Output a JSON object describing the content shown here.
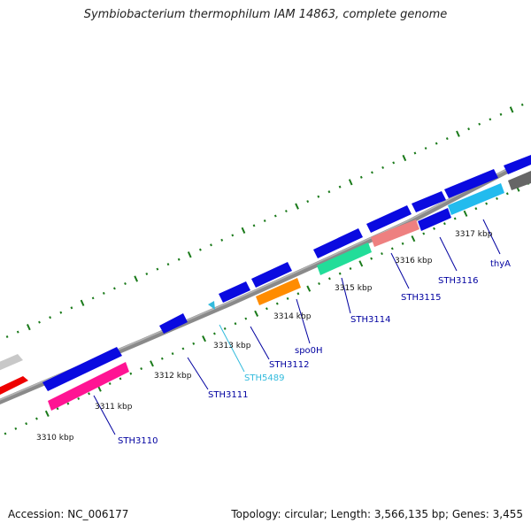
{
  "title": "Symbiobacterium thermophilum IAM 14863, complete genome",
  "footer": {
    "accession": "Accession: NC_006177",
    "summary": "Topology: circular; Length: 3,566,135 bp; Genes: 3,455"
  },
  "colors": {
    "forward_gene": "#0a0ae0",
    "reverse_gene_gray": "#666666",
    "backbone": "#888888",
    "tick": "#1a7a1a",
    "gene_label": "#0000a0",
    "gene_label_cyan": "#33bbdd",
    "spo0H": "#ff8c00",
    "STH3110": "#ff1493",
    "STH3114": "#22dd99",
    "STH3115": "#ee8080",
    "STH3116": "#22bbee",
    "STH5489": "#33bbdd",
    "red_gene": "#ee0000",
    "light_gray_gene": "#c8c8c8"
  },
  "kbp_labels": [
    "3310 kbp",
    "3311 kbp",
    "3312 kbp",
    "3313 kbp",
    "3314 kbp",
    "3315 kbp",
    "3316 kbp",
    "3317 kbp"
  ],
  "gene_labels": [
    {
      "text": "STH3110",
      "color": "gene_label"
    },
    {
      "text": "STH3111",
      "color": "gene_label"
    },
    {
      "text": "STH5489",
      "color": "gene_label_cyan"
    },
    {
      "text": "STH3112",
      "color": "gene_label"
    },
    {
      "text": "spo0H",
      "color": "gene_label"
    },
    {
      "text": "STH3114",
      "color": "gene_label"
    },
    {
      "text": "STH3115",
      "color": "gene_label"
    },
    {
      "text": "STH3116",
      "color": "gene_label"
    },
    {
      "text": "thyA",
      "color": "gene_label"
    }
  ]
}
